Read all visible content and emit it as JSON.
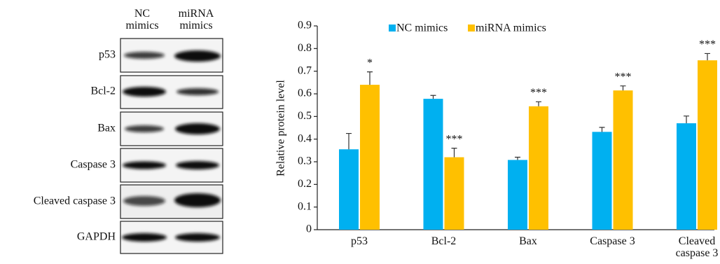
{
  "blot": {
    "columns": [
      "NC mimics",
      "miRNA mimics"
    ],
    "rows": [
      "p53",
      "Bcl-2",
      "Bax",
      "Caspase 3",
      "Cleaved caspase 3",
      "GAPDH"
    ]
  },
  "chart_data": {
    "type": "bar",
    "y_label": "Relative protein level",
    "categories": [
      "p53",
      "Bcl-2",
      "Bax",
      "Caspase 3",
      "Cleaved caspase 3"
    ],
    "series": [
      {
        "name": "NC mimics",
        "color": "#00b0f0",
        "values": [
          0.355,
          0.578,
          0.308,
          0.432,
          0.47
        ],
        "errors": [
          0.07,
          0.015,
          0.012,
          0.02,
          0.032
        ]
      },
      {
        "name": "miRNA mimics",
        "color": "#ffc000",
        "values": [
          0.64,
          0.32,
          0.545,
          0.615,
          0.748
        ],
        "errors": [
          0.057,
          0.04,
          0.02,
          0.02,
          0.03
        ],
        "annotations": [
          "*",
          "***",
          "***",
          "***",
          "***"
        ]
      }
    ],
    "ylim": [
      0,
      0.9
    ],
    "yticks": [
      0,
      0.1,
      0.2,
      0.3,
      0.4,
      0.5,
      0.6,
      0.7,
      0.8,
      0.9
    ]
  }
}
